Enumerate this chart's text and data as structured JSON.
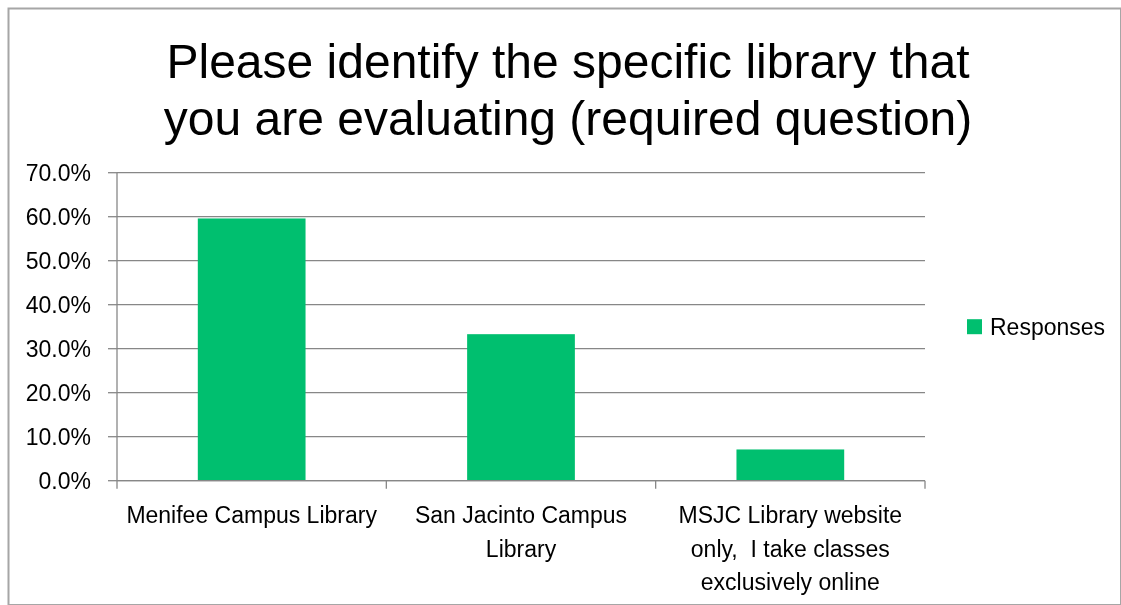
{
  "chart_data": {
    "type": "bar",
    "title": "Please identify the specific library that you are evaluating (required question)",
    "categories": [
      "Menifee Campus Library",
      "San Jacinto Campus Library",
      "MSJC Library website only,  I take classes exclusively online"
    ],
    "series": [
      {
        "name": "Responses",
        "color": "#00bf6f",
        "values": [
          59.6,
          33.3,
          7.1
        ]
      }
    ],
    "ylim": [
      0,
      70
    ],
    "yticks": [
      {
        "value": 0,
        "label": "0.0%"
      },
      {
        "value": 10,
        "label": "10.0%"
      },
      {
        "value": 20,
        "label": "20.0%"
      },
      {
        "value": 30,
        "label": "30.0%"
      },
      {
        "value": 40,
        "label": "40.0%"
      },
      {
        "value": 50,
        "label": "50.0%"
      },
      {
        "value": 60,
        "label": "60.0%"
      },
      {
        "value": 70,
        "label": "70.0%"
      }
    ],
    "grid": "y",
    "legend": "right"
  }
}
